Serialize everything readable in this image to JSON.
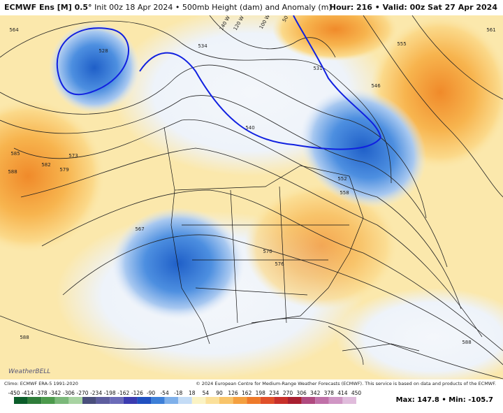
{
  "header": {
    "model": "ECMWF Ens [M] 0.5°",
    "subtitle": "Init 00z 18 Apr 2024 • 500mb Height (dam) and Anomaly (m)",
    "valid": "Hour: 216 • Valid: 00z Sat 27 Apr 2024"
  },
  "map": {
    "contour_labels": [
      564,
      528,
      534,
      531,
      540,
      546,
      555,
      561,
      585,
      588,
      582,
      579,
      573,
      552,
      558,
      567,
      570,
      576,
      588,
      588
    ],
    "meridian_labels": [
      "140 W",
      "120 W",
      "100 W",
      "50 W"
    ],
    "logo": "WeatherBELL"
  },
  "footer": {
    "climo": "Climo: ECMWF ERA-5 1991-2020",
    "credit": "© 2024 European Centre for Medium-Range Weather Forecasts (ECMWF). This service is based on data and products of the ECMWF."
  },
  "colorbar": {
    "labels": [
      -450,
      -414,
      -378,
      -342,
      -306,
      -270,
      -234,
      -198,
      -162,
      -126,
      -90,
      -54,
      -18,
      18,
      54,
      90,
      126,
      162,
      198,
      234,
      270,
      306,
      342,
      378,
      414,
      450
    ]
  },
  "stats": "Max: 147.8 • Min: -105.7"
}
